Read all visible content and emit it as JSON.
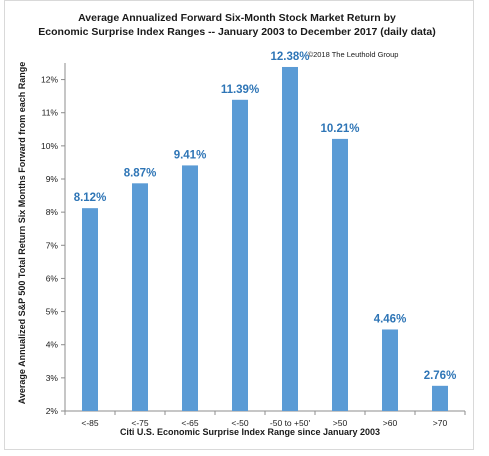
{
  "chart_data": {
    "type": "bar",
    "title_lines": [
      "Average Annualized Forward Six-Month Stock Market Return by",
      "Economic Surprise Index Ranges -- January 2003 to December 2017 (daily data)"
    ],
    "copyright": "©2018 The Leuthold Group",
    "categories": [
      "<-85",
      "<-75",
      "<-65",
      "<-50",
      "-50 to +50'",
      ">50",
      ">60",
      ">70"
    ],
    "values": [
      8.12,
      8.87,
      9.41,
      11.39,
      12.38,
      10.21,
      4.46,
      2.76
    ],
    "data_labels": [
      "8.12%",
      "8.87%",
      "9.41%",
      "11.39%",
      "12.38%",
      "10.21%",
      "4.46%",
      "2.76%"
    ],
    "xlabel": "Citi U.S. Economic Surprise Index Range since January 2003",
    "ylabel": "Average Annualized S&P 500 Total Return Six Months Forward from each Range",
    "ylim": [
      2,
      12.5
    ],
    "yticks": [
      2,
      3,
      4,
      5,
      6,
      7,
      8,
      9,
      10,
      11,
      12
    ],
    "ytick_labels": [
      "2%",
      "3%",
      "4%",
      "5%",
      "6%",
      "7%",
      "8%",
      "9%",
      "10%",
      "11%",
      "12%"
    ],
    "grid": false,
    "legend": "none",
    "colors": {
      "bar": "#5b9bd5",
      "label": "#2e75b6",
      "axis": "#8c8c8c"
    }
  }
}
